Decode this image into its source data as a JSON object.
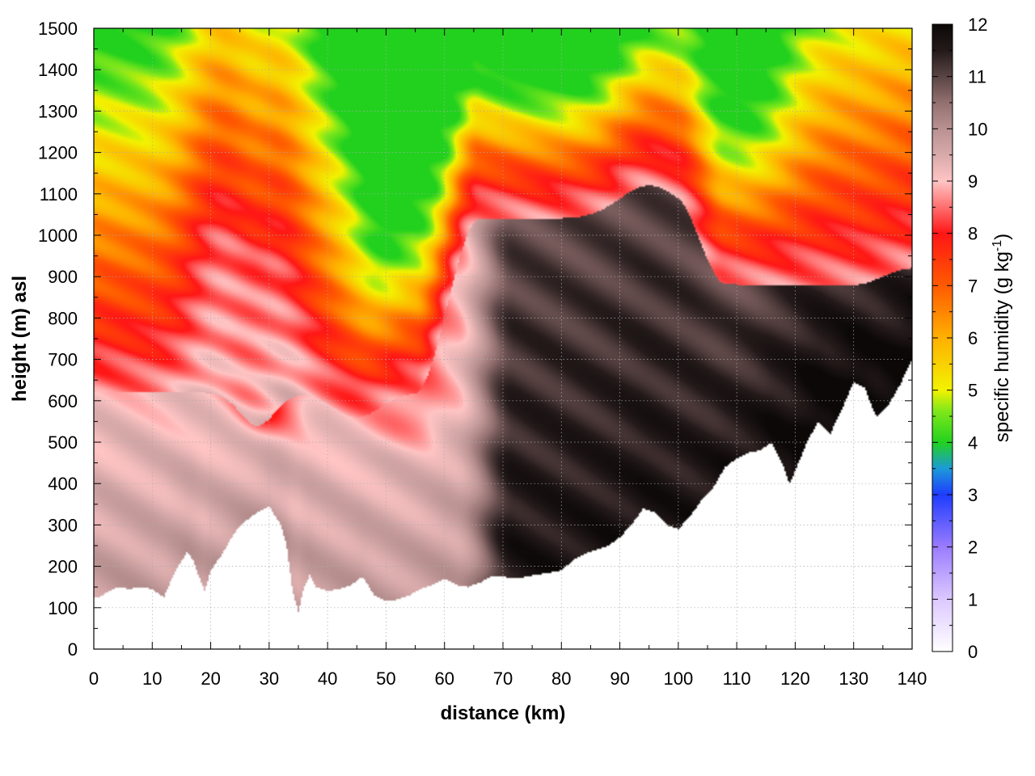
{
  "chart_data": {
    "type": "heatmap",
    "subtype": "vertical cross-section contour (filled)",
    "xlabel": "distance (km)",
    "ylabel": "height (m) asl",
    "colorbar_label": {
      "main": "specific humidity (g kg",
      "sup": "-1",
      "end": ")"
    },
    "xlim": [
      0,
      140
    ],
    "ylim": [
      0,
      1500
    ],
    "zlim": [
      0,
      12
    ],
    "x_ticks": [
      0,
      10,
      20,
      30,
      40,
      50,
      60,
      70,
      80,
      90,
      100,
      110,
      120,
      130,
      140
    ],
    "y_ticks": [
      0,
      100,
      200,
      300,
      400,
      500,
      600,
      700,
      800,
      900,
      1000,
      1100,
      1200,
      1300,
      1400,
      1500
    ],
    "z_ticks": [
      0,
      1,
      2,
      3,
      4,
      5,
      6,
      7,
      8,
      9,
      10,
      11,
      12
    ],
    "grid": true,
    "colormap": [
      {
        "v": 0,
        "color": "#ffffff"
      },
      {
        "v": 1,
        "color": "#dcc8ff"
      },
      {
        "v": 2,
        "color": "#9a7cff"
      },
      {
        "v": 3,
        "color": "#1e3cff"
      },
      {
        "v": 3.5,
        "color": "#1c9ad8"
      },
      {
        "v": 4,
        "color": "#22d11e"
      },
      {
        "v": 4.6,
        "color": "#7fe81a"
      },
      {
        "v": 5,
        "color": "#f2f200"
      },
      {
        "v": 6,
        "color": "#ffb000"
      },
      {
        "v": 7,
        "color": "#ff5a00"
      },
      {
        "v": 8,
        "color": "#ff1616"
      },
      {
        "v": 8.6,
        "color": "#ff8080"
      },
      {
        "v": 9,
        "color": "#ffc4c4"
      },
      {
        "v": 9.5,
        "color": "#d8aaaa"
      },
      {
        "v": 10,
        "color": "#b99191"
      },
      {
        "v": 10.5,
        "color": "#937070"
      },
      {
        "v": 11,
        "color": "#5a4444"
      },
      {
        "v": 11.5,
        "color": "#241a1a"
      },
      {
        "v": 12,
        "color": "#0c0808"
      }
    ],
    "terrain": {
      "x": [
        0,
        1,
        2,
        4,
        6,
        8,
        10,
        12,
        14,
        16,
        17,
        18,
        19,
        20,
        22,
        24,
        26,
        28,
        30,
        32,
        33,
        34,
        35,
        36,
        37,
        38,
        40,
        42,
        44,
        46,
        48,
        50,
        52,
        54,
        56,
        58,
        60,
        62,
        64,
        66,
        68,
        70,
        72,
        74,
        76,
        78,
        80,
        82,
        84,
        86,
        88,
        90,
        92,
        94,
        96,
        98,
        100,
        102,
        104,
        106,
        108,
        110,
        112,
        114,
        116,
        118,
        119,
        120,
        122,
        124,
        126,
        128,
        130,
        132,
        133,
        134,
        136,
        138,
        140
      ],
      "height": [
        125,
        125,
        135,
        150,
        145,
        150,
        145,
        125,
        190,
        235,
        215,
        175,
        140,
        190,
        230,
        280,
        310,
        330,
        345,
        300,
        250,
        140,
        90,
        150,
        180,
        150,
        140,
        145,
        155,
        175,
        130,
        115,
        120,
        130,
        145,
        155,
        170,
        155,
        150,
        160,
        175,
        175,
        170,
        175,
        180,
        185,
        190,
        215,
        230,
        240,
        250,
        270,
        300,
        340,
        330,
        300,
        290,
        320,
        360,
        390,
        440,
        460,
        475,
        480,
        500,
        440,
        400,
        430,
        500,
        550,
        520,
        580,
        645,
        630,
        590,
        560,
        590,
        640,
        700
      ]
    },
    "field_description": "Moist boundary layer (9-12 g/kg) below ~600-1000 m, wettest (>11) over 70-140 km; red/orange 6-8 g/kg above; driest layer (4-5 g/kg) around 45-100 km at 1150-1500 m."
  }
}
